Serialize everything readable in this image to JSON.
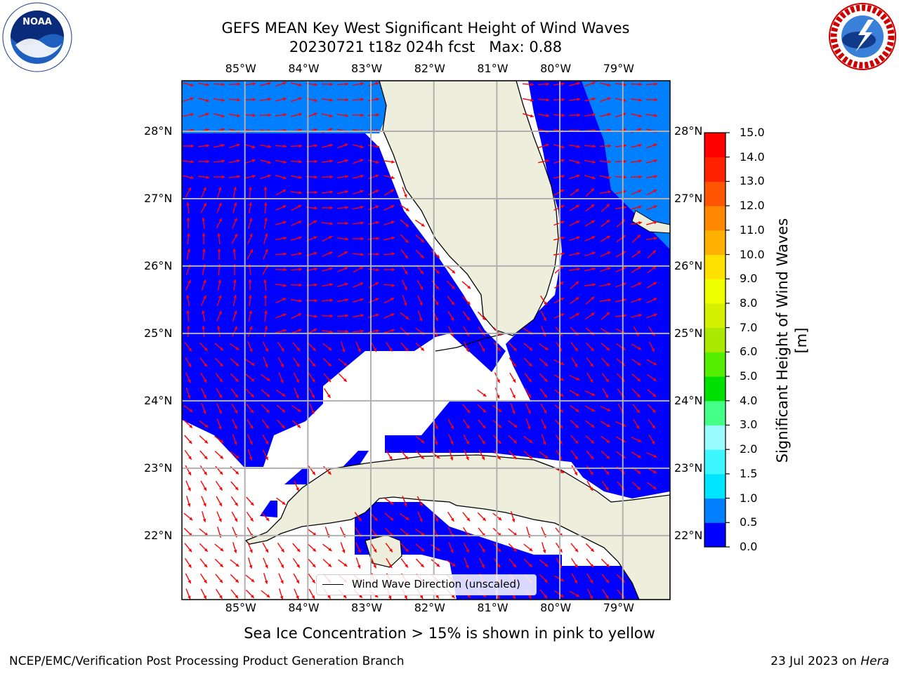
{
  "title": {
    "line1": "GEFS MEAN Key West Significant Height of Wind Waves",
    "line2": "20230721 t18z 024h fcst   Max: 0.88"
  },
  "logos": {
    "left": {
      "text": "NOAA",
      "ring_text": "NATIONAL OCEANIC AND ATMOSPHERIC ADMINISTRATION · U.S. DEPARTMENT OF COMMERCE"
    },
    "right": {
      "text": "NATIONAL WEATHER SERVICE"
    }
  },
  "map": {
    "lon_ticks": [
      "85°W",
      "84°W",
      "83°W",
      "82°W",
      "81°W",
      "80°W",
      "79°W"
    ],
    "lat_ticks": [
      "28°N",
      "27°N",
      "26°N",
      "25°N",
      "24°N",
      "23°N",
      "22°N"
    ],
    "lon_values": [
      -85,
      -84,
      -83,
      -82,
      -81,
      -80,
      -79
    ],
    "lat_values": [
      28,
      27,
      26,
      25,
      24,
      23,
      22
    ],
    "lon_range": [
      -86.0,
      -78.25
    ],
    "lat_range": [
      21.05,
      28.75
    ],
    "colors": {
      "land": "#eeeedd",
      "wave_0_05": "#0000ff",
      "wave_05_10": "#0080ff",
      "no_data": "#ffffff",
      "arrow": "#ff0000",
      "grid": "#b0b0b0",
      "coast": "#000000"
    },
    "grid": true
  },
  "legend": {
    "label": "Wind Wave Direction (unscaled)"
  },
  "colorbar": {
    "label": "Significant Height of Wind Waves [m]",
    "ticks": [
      "0.0",
      "0.5",
      "1.0",
      "1.5",
      "2.0",
      "3.0",
      "4.0",
      "5.0",
      "6.0",
      "7.0",
      "8.0",
      "9.0",
      "10.0",
      "11.0",
      "12.0",
      "13.0",
      "14.0",
      "15.0"
    ],
    "colors": [
      "#0000ff",
      "#0080ff",
      "#00e5ff",
      "#3ef6ff",
      "#9afbff",
      "#44ff88",
      "#00e000",
      "#55ee00",
      "#aae800",
      "#d4f000",
      "#f0ff00",
      "#ffe000",
      "#ffb000",
      "#ff8800",
      "#ff5500",
      "#ff2200",
      "#ff0000"
    ]
  },
  "note": "Sea Ice Concentration > 15% is shown in pink to yellow",
  "footer": {
    "left": "NCEP/EMC/Verification Post Processing Product Generation Branch",
    "right_prefix": "23 Jul 2023 on ",
    "right_italic": "Hera"
  }
}
